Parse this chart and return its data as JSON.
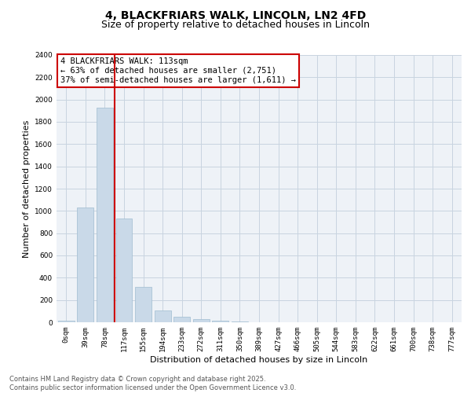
{
  "title_line1": "4, BLACKFRIARS WALK, LINCOLN, LN2 4FD",
  "title_line2": "Size of property relative to detached houses in Lincoln",
  "xlabel": "Distribution of detached houses by size in Lincoln",
  "ylabel": "Number of detached properties",
  "bar_color": "#c9d9e8",
  "bar_edge_color": "#a0bcd0",
  "categories": [
    "0sqm",
    "39sqm",
    "78sqm",
    "117sqm",
    "155sqm",
    "194sqm",
    "233sqm",
    "272sqm",
    "311sqm",
    "350sqm",
    "389sqm",
    "427sqm",
    "466sqm",
    "505sqm",
    "544sqm",
    "583sqm",
    "622sqm",
    "661sqm",
    "700sqm",
    "738sqm",
    "777sqm"
  ],
  "values": [
    15,
    1030,
    1930,
    935,
    315,
    105,
    50,
    28,
    15,
    5,
    0,
    0,
    0,
    0,
    0,
    0,
    0,
    0,
    0,
    0,
    0
  ],
  "ylim": [
    0,
    2400
  ],
  "yticks": [
    0,
    200,
    400,
    600,
    800,
    1000,
    1200,
    1400,
    1600,
    1800,
    2000,
    2200,
    2400
  ],
  "vline_x_index": 2,
  "vline_color": "#cc0000",
  "annotation_text": "4 BLACKFRIARS WALK: 113sqm\n← 63% of detached houses are smaller (2,751)\n37% of semi-detached houses are larger (1,611) →",
  "annotation_box_color": "#cc0000",
  "grid_color": "#c8d4e0",
  "background_color": "#eef2f7",
  "footer_line1": "Contains HM Land Registry data © Crown copyright and database right 2025.",
  "footer_line2": "Contains public sector information licensed under the Open Government Licence v3.0.",
  "title_fontsize": 10,
  "subtitle_fontsize": 9,
  "xlabel_fontsize": 8,
  "ylabel_fontsize": 8,
  "tick_fontsize": 6.5,
  "annotation_fontsize": 7.5,
  "footer_fontsize": 6
}
